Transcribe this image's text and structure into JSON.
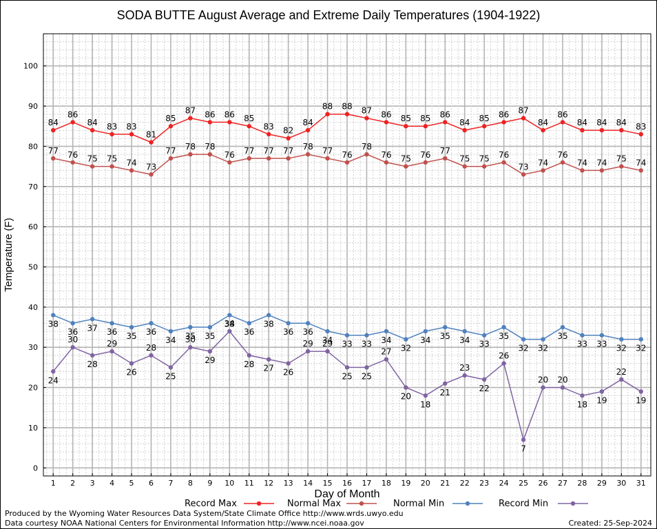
{
  "chart_data": {
    "type": "line",
    "title": "SODA BUTTE August Average and Extreme Daily Temperatures (1904-1922)",
    "xlabel": "Day of Month",
    "ylabel": "Temperature (F)",
    "ylim": [
      -2,
      108
    ],
    "yticks": [
      0,
      10,
      20,
      30,
      40,
      50,
      60,
      70,
      80,
      90,
      100
    ],
    "xlim": [
      0.5,
      31.5
    ],
    "grid": true,
    "legend_placement": "bottom",
    "x": [
      1,
      2,
      3,
      4,
      5,
      6,
      7,
      8,
      9,
      10,
      11,
      12,
      13,
      14,
      15,
      16,
      17,
      18,
      19,
      20,
      21,
      22,
      23,
      24,
      25,
      26,
      27,
      28,
      29,
      30,
      31
    ],
    "series": [
      {
        "name": "Record Max",
        "color": "#ee2222",
        "label_pos": "above",
        "values": [
          84,
          86,
          84,
          83,
          83,
          81,
          85,
          87,
          86,
          86,
          85,
          83,
          82,
          84,
          88,
          88,
          87,
          86,
          85,
          85,
          86,
          84,
          85,
          86,
          87,
          84,
          86,
          84,
          84,
          84,
          83
        ]
      },
      {
        "name": "Normal Max",
        "color": "#c0504d",
        "label_pos": "above",
        "values": [
          77,
          76,
          75,
          75,
          74,
          73,
          77,
          78,
          78,
          76,
          77,
          77,
          77,
          78,
          77,
          76,
          78,
          76,
          75,
          76,
          77,
          75,
          75,
          76,
          73,
          74,
          76,
          74,
          74,
          75,
          74
        ]
      },
      {
        "name": "Normal Min",
        "color": "#4f81bd",
        "label_pos": "below",
        "values": [
          38,
          36,
          37,
          36,
          35,
          36,
          34,
          35,
          35,
          38,
          36,
          38,
          36,
          36,
          34,
          33,
          33,
          34,
          32,
          34,
          35,
          34,
          33,
          35,
          32,
          32,
          35,
          33,
          33,
          32,
          32
        ]
      },
      {
        "name": "Record Min",
        "color": "#8064a2",
        "label_pos": "mixed",
        "values": [
          24,
          30,
          28,
          29,
          26,
          28,
          25,
          30,
          29,
          34,
          28,
          27,
          26,
          29,
          29,
          25,
          25,
          27,
          20,
          18,
          21,
          23,
          22,
          26,
          7,
          20,
          20,
          18,
          19,
          22,
          19
        ]
      }
    ]
  },
  "footer": {
    "line1": "Produced by the Wyoming Water Resources Data System/State Climate Office http://www.wrds.uwyo.edu",
    "line2": "Data courtesy NOAA National Centers for Environmental Information http://www.ncei.noaa.gov",
    "created": "Created:  25-Sep-2024"
  }
}
